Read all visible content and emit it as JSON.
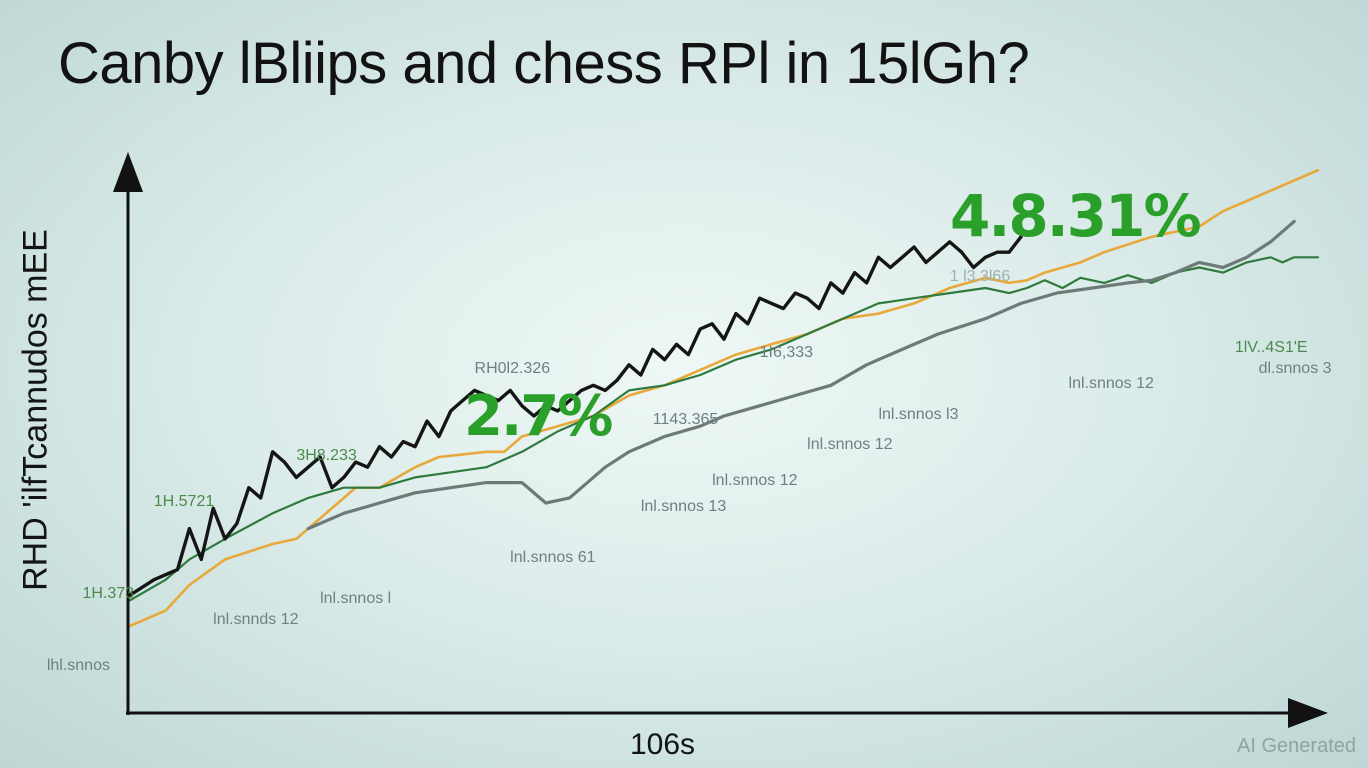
{
  "chart_data": {
    "type": "line",
    "title": "Canby lBliips and chess RPl in 15lGh?",
    "xlabel": "106s",
    "ylabel": "RHD 'ilfTcannudos  mEE",
    "x_domain": [
      0,
      100
    ],
    "y_domain": [
      0,
      100
    ],
    "grid": false,
    "legend": "none",
    "highlights": [
      "2.7%",
      "4.8.31%"
    ],
    "series": [
      {
        "color": "#e8a83a",
        "x": [
          0,
          3,
          5,
          8,
          12,
          14,
          16,
          17.5,
          19,
          21,
          22.5,
          24,
          26,
          28,
          30,
          31.5,
          33,
          36,
          39,
          42,
          45,
          48,
          51,
          54,
          57,
          60,
          63,
          66,
          69,
          72,
          74,
          75.5,
          77,
          78.5,
          80,
          82,
          84,
          86,
          88,
          90,
          92,
          94,
          96,
          98,
          100
        ],
        "y": [
          9,
          12,
          17,
          22,
          25,
          26,
          30,
          33,
          36,
          36,
          38,
          40,
          42,
          42.5,
          43,
          43,
          46,
          48,
          50,
          54,
          56,
          59,
          62,
          64,
          66,
          69,
          70,
          72,
          75,
          77,
          76,
          76.5,
          78,
          79,
          80,
          82,
          83.5,
          85,
          86,
          87,
          90,
          92,
          94,
          96,
          98
        ]
      },
      {
        "color": "#2f7a3f",
        "x": [
          0,
          3,
          5,
          8,
          12,
          15,
          18,
          21,
          24,
          27,
          30,
          33,
          36,
          39,
          42,
          45,
          48,
          51,
          54,
          57,
          60,
          63,
          66,
          69,
          72,
          74,
          75.5,
          77,
          78.5,
          80,
          82,
          84,
          86,
          88,
          90,
          92,
          94,
          96,
          97,
          98,
          100
        ],
        "y": [
          14,
          18,
          22,
          26,
          31,
          34,
          36,
          36,
          38,
          39,
          40,
          43,
          47,
          50,
          55,
          56,
          58,
          61,
          63,
          66,
          69,
          72,
          73,
          74,
          75,
          74,
          75,
          76.5,
          75,
          77,
          76,
          77.5,
          76,
          78,
          79,
          78,
          80,
          81,
          80,
          81,
          81
        ]
      },
      {
        "color": "#6e7a78",
        "x": [
          15,
          18,
          21,
          24,
          27,
          30,
          33,
          35,
          37,
          40,
          42,
          45,
          48,
          50,
          53,
          56,
          59,
          62,
          65,
          68,
          72,
          75,
          78,
          81,
          84,
          86,
          88,
          90,
          92,
          94,
          96,
          97,
          98
        ],
        "y": [
          28,
          31,
          33,
          35,
          36,
          37,
          37,
          33,
          34,
          40,
          43,
          46,
          48,
          50,
          52,
          54,
          56,
          60,
          63,
          66,
          69,
          72,
          74,
          75,
          76,
          76.5,
          78,
          80,
          79,
          81,
          84,
          86,
          88
        ]
      },
      {
        "color": "#151515",
        "x": [
          0,
          2,
          4,
          5,
          6,
          7,
          8,
          9,
          10,
          11,
          12,
          13,
          14,
          15,
          16,
          17,
          18,
          19,
          20,
          21,
          22,
          23,
          24,
          25,
          26,
          27,
          28,
          29,
          30,
          31,
          32,
          33,
          34,
          35,
          36,
          37,
          38,
          39,
          40,
          41,
          42,
          43,
          44,
          45,
          46,
          47,
          48,
          49,
          50,
          51,
          52,
          53,
          54,
          55,
          56,
          57,
          58,
          59,
          60,
          61,
          62,
          63,
          64,
          65,
          66,
          67,
          68,
          69,
          70,
          71,
          72,
          73,
          74,
          75
        ],
        "y": [
          15,
          18,
          20,
          28,
          22,
          32,
          26,
          29,
          36,
          34,
          43,
          41,
          38,
          40,
          42,
          36,
          38,
          41,
          40,
          44,
          42,
          45,
          44,
          49,
          46,
          51,
          53,
          55,
          54,
          53,
          55,
          52,
          50,
          52,
          51,
          53,
          55,
          56,
          55,
          57,
          60,
          58,
          63,
          61,
          64,
          62,
          67,
          68,
          65,
          70,
          68,
          73,
          72,
          71,
          74,
          73,
          71,
          76,
          74,
          78,
          76,
          81,
          79,
          81,
          83,
          80,
          82,
          84,
          82,
          79,
          81,
          82,
          82,
          85
        ]
      }
    ],
    "annotations": [
      {
        "text": "1H.373",
        "x": -4,
        "y": 17,
        "style": "green"
      },
      {
        "text": "1H.5721",
        "x": 2,
        "y": 35,
        "style": "green"
      },
      {
        "text": "3H8.233",
        "x": 14,
        "y": 44,
        "style": "green"
      },
      {
        "text": "RH0l2.326",
        "x": 29,
        "y": 61,
        "style": "gray"
      },
      {
        "text": "1143.365",
        "x": 44,
        "y": 51,
        "style": "gray"
      },
      {
        "text": "1I6,333",
        "x": 53,
        "y": 64,
        "style": "gray"
      },
      {
        "text": "1 l3.3l66",
        "x": 69,
        "y": 79,
        "style": "faint"
      },
      {
        "text": "1lV..4S1'E",
        "x": 93,
        "y": 65,
        "style": "green"
      },
      {
        "text": "lhl.snnos",
        "x": -7,
        "y": 3,
        "style": "gray"
      },
      {
        "text": "lnl.snnds 12",
        "x": 7,
        "y": 12,
        "style": "gray"
      },
      {
        "text": "lnl.snnos l",
        "x": 16,
        "y": 16,
        "style": "gray"
      },
      {
        "text": "lnl.snnos 61",
        "x": 32,
        "y": 24,
        "style": "gray"
      },
      {
        "text": "lnl.snnos 13",
        "x": 43,
        "y": 34,
        "style": "gray"
      },
      {
        "text": "lnl.snnos 12",
        "x": 49,
        "y": 39,
        "style": "gray"
      },
      {
        "text": "lnl.snnos 12",
        "x": 57,
        "y": 46,
        "style": "gray"
      },
      {
        "text": "lnl.snnos l3",
        "x": 63,
        "y": 52,
        "style": "gray"
      },
      {
        "text": "lnl.snnos 12",
        "x": 79,
        "y": 58,
        "style": "gray"
      },
      {
        "text": "dl.snnos 3",
        "x": 95,
        "y": 61,
        "style": "gray"
      }
    ]
  },
  "watermark": "AI Generated"
}
